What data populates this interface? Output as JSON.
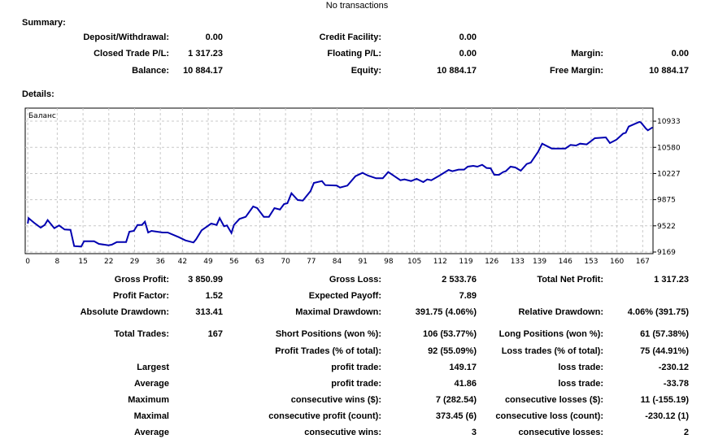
{
  "top_notice": "No transactions",
  "summary": {
    "title": "Summary:",
    "rows": [
      [
        "Deposit/Withdrawal:",
        "0.00",
        "Credit Facility:",
        "0.00",
        "",
        ""
      ],
      [
        "Closed Trade P/L:",
        "1 317.23",
        "Floating P/L:",
        "0.00",
        "Margin:",
        "0.00"
      ],
      [
        "Balance:",
        "10 884.17",
        "Equity:",
        "10 884.17",
        "Free Margin:",
        "10 884.17"
      ]
    ]
  },
  "details": {
    "title": "Details:",
    "rows": [
      [
        "Gross Profit:",
        "3 850.99",
        "Gross Loss:",
        "2 533.76",
        "Total Net Profit:",
        "1 317.23"
      ],
      [
        "Profit Factor:",
        "1.52",
        "Expected Payoff:",
        "7.89",
        "",
        ""
      ],
      [
        "Absolute Drawdown:",
        "313.41",
        "Maximal Drawdown:",
        "391.75 (4.06%)",
        "Relative Drawdown:",
        "4.06% (391.75)"
      ],
      [
        "Total Trades:",
        "167",
        "Short Positions (won %):",
        "106 (53.77%)",
        "Long Positions (won %):",
        "61 (57.38%)"
      ],
      [
        "",
        "",
        "Profit Trades (% of total):",
        "92 (55.09%)",
        "Loss trades (% of total):",
        "75 (44.91%)"
      ],
      [
        "Largest",
        "",
        "profit trade:",
        "149.17",
        "loss trade:",
        "-230.12"
      ],
      [
        "Average",
        "",
        "profit trade:",
        "41.86",
        "loss trade:",
        "-33.78"
      ],
      [
        "Maximum",
        "",
        "consecutive wins ($):",
        "7 (282.54)",
        "consecutive losses ($):",
        "11 (-155.19)"
      ],
      [
        "Maximal",
        "",
        "consecutive profit (count):",
        "373.45 (6)",
        "consecutive loss (count):",
        "-230.12 (1)"
      ],
      [
        "Average",
        "",
        "consecutive wins:",
        "3",
        "consecutive losses:",
        "2"
      ]
    ]
  },
  "chart_data": {
    "type": "line",
    "title": "Баланс",
    "series": [
      {
        "name": "Баланс",
        "color": "#0000b0",
        "x": [
          0,
          0.2,
          1.7,
          3.5,
          4.6,
          5.4,
          7.2,
          8.5,
          10,
          11.6,
          12.6,
          14.5,
          15.3,
          18,
          19.3,
          21.9,
          22.8,
          24.2,
          26.7,
          27.6,
          28.8,
          29.8,
          31,
          31.8,
          32.7,
          33.6,
          36.6,
          38,
          41,
          42.8,
          45,
          45.7,
          47.2,
          49.8,
          51.3,
          52.1,
          53.3,
          54.1,
          55.3,
          56,
          57.5,
          59.2,
          61.2,
          62.3,
          64.1,
          65.5,
          67,
          68.5,
          69.6,
          70.5,
          71.6,
          73.3,
          74.7,
          76.8,
          77.7,
          79.9,
          80.8,
          83.9,
          84.8,
          86.8,
          89,
          90.9,
          92.4,
          94.6,
          96.4,
          97.9,
          101.2,
          102.3,
          104.1,
          105.6,
          107.4,
          108.5,
          109.6,
          111.8,
          114.3,
          115.3,
          117,
          118.5,
          119.5,
          121,
          122.1,
          123.4,
          124.6,
          125.7,
          126.7,
          128,
          129.1,
          129.8,
          131.1,
          132.4,
          133.9,
          135.5,
          136.6,
          138.6,
          139.7,
          142.3,
          146,
          147.4,
          148.9,
          150,
          151.8,
          154,
          157,
          158.1,
          159.9,
          161.7,
          162.4,
          163.2,
          164.7,
          166.1,
          166.5,
          167.9,
          168.4,
          169.7
        ],
        "y": [
          9553,
          9626,
          9563,
          9498,
          9534,
          9600,
          9490,
          9527,
          9473,
          9468,
          9249,
          9242,
          9315,
          9315,
          9279,
          9260,
          9268,
          9304,
          9304,
          9443,
          9454,
          9534,
          9534,
          9578,
          9432,
          9454,
          9432,
          9432,
          9370,
          9326,
          9297,
          9340,
          9462,
          9553,
          9534,
          9626,
          9516,
          9527,
          9425,
          9534,
          9615,
          9644,
          9783,
          9761,
          9644,
          9644,
          9761,
          9742,
          9816,
          9827,
          9961,
          9870,
          9863,
          9991,
          10101,
          10126,
          10071,
          10064,
          10038,
          10064,
          10192,
          10236,
          10199,
          10163,
          10163,
          10247,
          10137,
          10148,
          10126,
          10155,
          10112,
          10148,
          10137,
          10199,
          10276,
          10258,
          10280,
          10280,
          10320,
          10331,
          10320,
          10345,
          10302,
          10298,
          10210,
          10210,
          10247,
          10258,
          10320,
          10309,
          10265,
          10356,
          10375,
          10520,
          10630,
          10564,
          10564,
          10612,
          10605,
          10630,
          10620,
          10703,
          10714,
          10638,
          10685,
          10766,
          10777,
          10860,
          10893,
          10923,
          10916,
          10832,
          10810,
          10849
        ]
      }
    ],
    "x_ticks": [
      "0",
      "8",
      "15",
      "22",
      "29",
      "36",
      "42",
      "49",
      "56",
      "63",
      "70",
      "77",
      "84",
      "91",
      "98",
      "105",
      "112",
      "119",
      "126",
      "133",
      "139",
      "146",
      "153",
      "160",
      "167"
    ],
    "y_ticks": [
      "9169",
      "9522",
      "9875",
      "10227",
      "10580",
      "10933"
    ],
    "xlim": [
      -0.7,
      169.8
    ],
    "ylim": [
      9147,
      11109
    ],
    "grid": true,
    "legend": "top-left"
  }
}
